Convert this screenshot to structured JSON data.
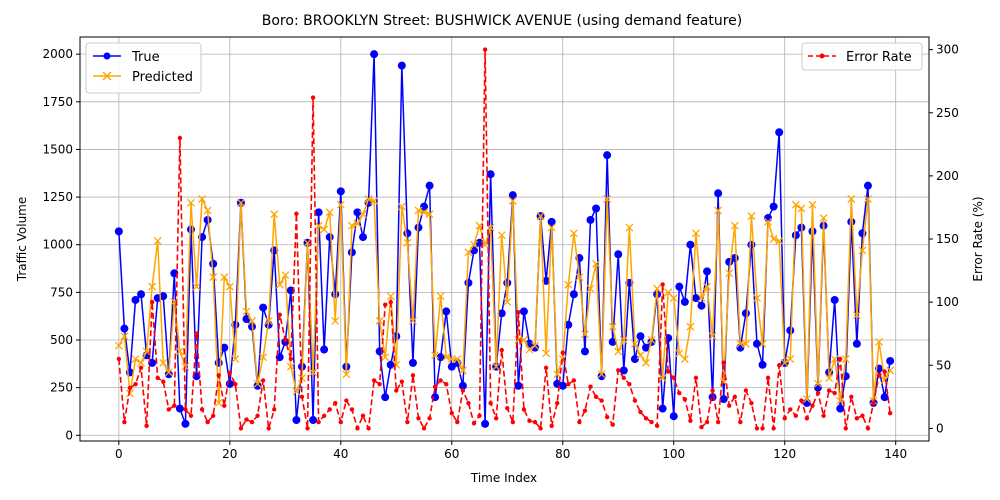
{
  "chart_data": {
    "type": "line",
    "title": "Boro: BROOKLYN Street: BUSHWICK AVENUE (using demand feature)",
    "xlabel": "Time Index",
    "ylabel": "Traffic Volume",
    "y2label": "Error Rate (%)",
    "xlim": [
      -7,
      146
    ],
    "ylim": [
      -30,
      2090
    ],
    "y2lim": [
      -10,
      310
    ],
    "xticks": [
      0,
      20,
      40,
      60,
      80,
      100,
      120,
      140
    ],
    "yticks": [
      0,
      250,
      500,
      750,
      1000,
      1250,
      1500,
      1750,
      2000
    ],
    "y2ticks": [
      0,
      50,
      100,
      150,
      200,
      250,
      300
    ],
    "grid": true,
    "legend_left": "top-left",
    "legend_right": "top-right",
    "colors": {
      "true": "#0000ff",
      "predicted": "#ffa500",
      "error": "#ff0000"
    },
    "series": [
      {
        "name": "True",
        "axis": "left",
        "values": [
          1070,
          560,
          330,
          710,
          740,
          420,
          380,
          720,
          730,
          320,
          850,
          140,
          60,
          1080,
          310,
          1040,
          1130,
          900,
          380,
          460,
          270,
          580,
          1220,
          610,
          570,
          260,
          670,
          580,
          970,
          410,
          490,
          760,
          80,
          360,
          1010,
          80,
          1170,
          450,
          1040,
          740,
          1280,
          360,
          960,
          1170,
          1040,
          1220,
          2000,
          440,
          200,
          370,
          520,
          1940,
          1060,
          380,
          1090,
          1200,
          1310,
          200,
          410,
          650,
          360,
          380,
          260,
          800,
          970,
          1010,
          60,
          1370,
          360,
          640,
          800,
          1260,
          260,
          650,
          480,
          460,
          1150,
          810,
          1120,
          270,
          260,
          580,
          740,
          930,
          440,
          1130,
          1190,
          310,
          1470,
          490,
          950,
          340,
          800,
          400,
          520,
          460,
          490,
          740,
          140,
          510,
          100,
          780,
          700,
          1000,
          720,
          680,
          860,
          200,
          1270,
          190,
          910,
          930,
          460,
          640,
          1000,
          480,
          370,
          1140,
          1200,
          1590,
          380,
          550,
          1050,
          1090,
          170,
          1070,
          250,
          1100,
          330,
          710,
          140,
          310,
          1120,
          480,
          1060,
          1310,
          170,
          350,
          200,
          390
        ]
      },
      {
        "name": "Predicted",
        "axis": "left",
        "values": [
          470,
          520,
          220,
          400,
          380,
          440,
          780,
          1020,
          380,
          330,
          700,
          440,
          360,
          1220,
          780,
          1240,
          1180,
          830,
          170,
          830,
          780,
          400,
          1220,
          650,
          600,
          270,
          410,
          600,
          1160,
          790,
          840,
          360,
          230,
          300,
          1010,
          330,
          1100,
          1080,
          1170,
          600,
          1210,
          320,
          1100,
          1110,
          1160,
          1240,
          1230,
          600,
          410,
          730,
          370,
          1200,
          1010,
          600,
          1180,
          1170,
          1160,
          420,
          730,
          410,
          400,
          400,
          340,
          960,
          1000,
          1100,
          1000,
          1090,
          360,
          1050,
          700,
          1230,
          500,
          500,
          450,
          470,
          1150,
          430,
          1090,
          320,
          400,
          790,
          1060,
          830,
          530,
          770,
          900,
          320,
          1240,
          570,
          440,
          500,
          1090,
          480,
          420,
          380,
          500,
          770,
          300,
          750,
          720,
          430,
          400,
          570,
          1060,
          720,
          780,
          520,
          1180,
          280,
          850,
          1100,
          480,
          480,
          1150,
          720,
          480,
          1120,
          1030,
          1020,
          380,
          400,
          1210,
          1190,
          190,
          1210,
          270,
          1140,
          300,
          400,
          180,
          400,
          1240,
          630,
          970,
          1240,
          180,
          490,
          290,
          340
        ]
      },
      {
        "name": "Error Rate",
        "axis": "right",
        "values": [
          55,
          5,
          32,
          35,
          48,
          2,
          100,
          40,
          37,
          15,
          18,
          230,
          15,
          10,
          75,
          15,
          5,
          10,
          42,
          18,
          44,
          35,
          0,
          7,
          5,
          10,
          38,
          0,
          15,
          90,
          70,
          55,
          170,
          25,
          0,
          262,
          5,
          10,
          15,
          20,
          5,
          22,
          15,
          0,
          10,
          0,
          38,
          35,
          98,
          100,
          30,
          37,
          5,
          42,
          8,
          0,
          8,
          33,
          38,
          35,
          12,
          5,
          30,
          20,
          4,
          10,
          300,
          20,
          8,
          62,
          16,
          5,
          92,
          15,
          6,
          5,
          0,
          48,
          2,
          20,
          60,
          35,
          38,
          5,
          14,
          33,
          25,
          22,
          9,
          3,
          46,
          40,
          35,
          22,
          13,
          8,
          5,
          2,
          114,
          45,
          40,
          28,
          23,
          6,
          40,
          1,
          5,
          30,
          5,
          52,
          18,
          25,
          5,
          30,
          20,
          0,
          0,
          40,
          0,
          50,
          8,
          15,
          10,
          22,
          8,
          18,
          28,
          10,
          30,
          28,
          55,
          0,
          25,
          8,
          10,
          0,
          20,
          42,
          45,
          12
        ]
      }
    ]
  }
}
